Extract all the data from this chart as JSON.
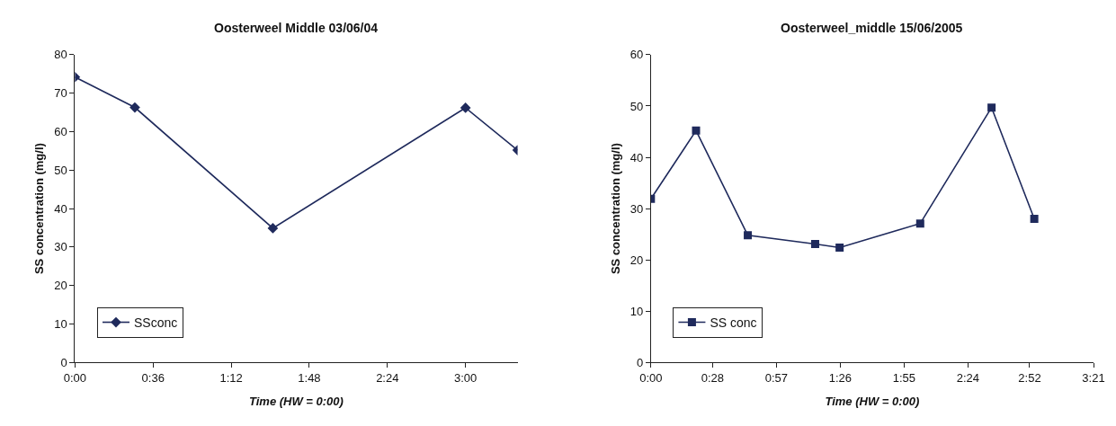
{
  "chart_data": [
    {
      "type": "line",
      "title": "Oosterweel Middle 03/06/04",
      "xlabel": "Time (HW = 0:00)",
      "ylabel": "SS concentration (mg/l)",
      "x": [
        0,
        27.6,
        91.2,
        180,
        204
      ],
      "series": [
        {
          "name": "SSconc",
          "color": "#1f2a5c",
          "values": [
            74.2,
            66.3,
            34.9,
            66.2,
            55.2
          ]
        }
      ],
      "xlim": [
        0,
        204
      ],
      "xticks": [
        {
          "value": 0,
          "label": "0:00"
        },
        {
          "value": 36,
          "label": "0:36"
        },
        {
          "value": 72,
          "label": "1:12"
        },
        {
          "value": 108,
          "label": "1:48"
        },
        {
          "value": 144,
          "label": "2:24"
        },
        {
          "value": 180,
          "label": "3:00"
        }
      ],
      "ylim": [
        0,
        80
      ],
      "yticks": [
        0,
        10,
        20,
        30,
        40,
        50,
        60,
        70,
        80
      ],
      "marker": "diamond",
      "legend": "bottom left"
    },
    {
      "type": "line",
      "title": "Oosterweel_middle 15/06/2005",
      "xlabel": "Time (HW = 0:00)",
      "ylabel": "SS concentration (mg/l)",
      "x": [
        0,
        20.5,
        44,
        74.6,
        85.7,
        122.3,
        154.7,
        174.1
      ],
      "series": [
        {
          "name": "SS conc",
          "color": "#1f2a5c",
          "values": [
            31.9,
            45.2,
            24.8,
            23.1,
            22.4,
            27.1,
            49.7,
            28.0
          ]
        }
      ],
      "xlim": [
        0,
        201
      ],
      "xticks": [
        {
          "value": 0,
          "label": "0:00"
        },
        {
          "value": 28,
          "label": "0:28"
        },
        {
          "value": 57,
          "label": "0:57"
        },
        {
          "value": 86,
          "label": "1:26"
        },
        {
          "value": 115,
          "label": "1:55"
        },
        {
          "value": 144,
          "label": "2:24"
        },
        {
          "value": 172,
          "label": "2:52"
        },
        {
          "value": 201,
          "label": "3:21"
        }
      ],
      "ylim": [
        0,
        60
      ],
      "yticks": [
        0,
        10,
        20,
        30,
        40,
        50,
        60
      ],
      "marker": "square",
      "legend": "bottom left"
    }
  ]
}
